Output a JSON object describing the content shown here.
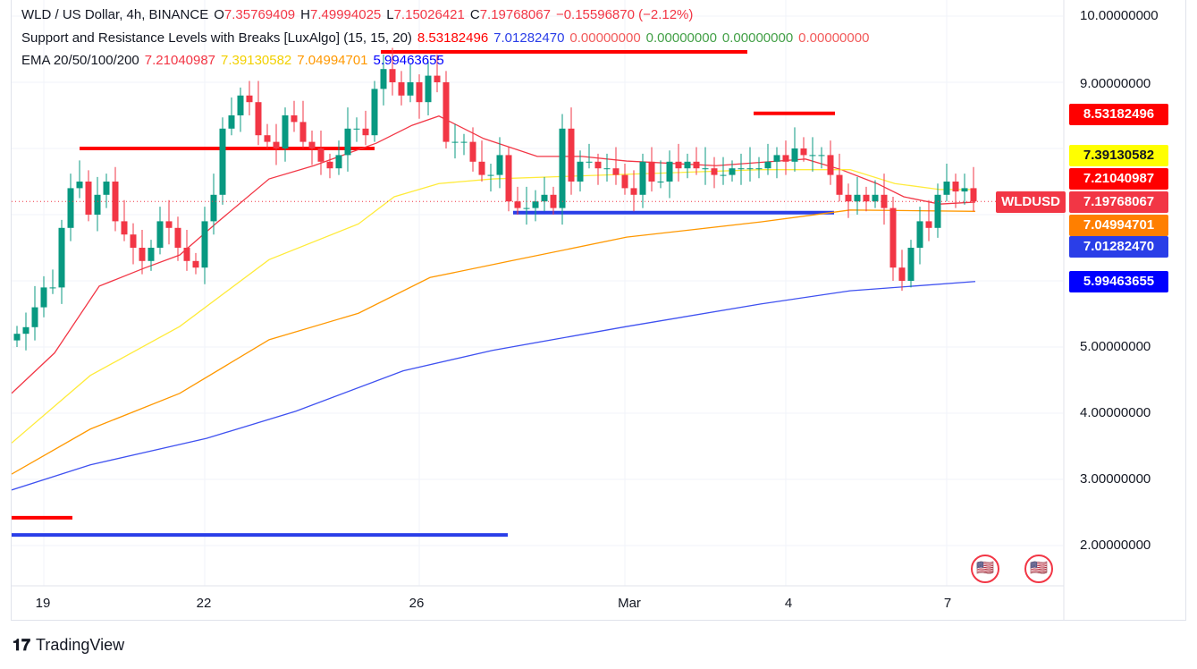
{
  "header": {
    "symbol": "WLD / US Dollar, 4h, BINANCE",
    "o_label": "O",
    "o": "7.35769409",
    "h_label": "H",
    "h": "7.49994025",
    "l_label": "L",
    "l": "7.15026421",
    "c_label": "C",
    "c": "7.19768067",
    "change": "−0.15596870 (−2.12%)"
  },
  "indicator1": {
    "name": "Support and Resistance Levels with Breaks [LuxAlgo] (15, 15, 20)",
    "v1": "8.53182496",
    "v2": "7.01282470",
    "v3": "0.00000000",
    "v4": "0.00000000",
    "v5": "0.00000000",
    "v6": "0.00000000"
  },
  "indicator2": {
    "name": "EMA 20/50/100/200",
    "v1": "7.21040987",
    "v2": "7.39130582",
    "v3": "7.04994701",
    "v4": "5.99463655"
  },
  "price_tags": {
    "resistance": "8.53182496",
    "ema50": "7.39130582",
    "ema20": "7.21040987",
    "last": "7.19768067",
    "ema100": "7.04994701",
    "support": "7.01282470",
    "ema200": "5.99463655",
    "symbol": "WLDUSD"
  },
  "brand": "TradingView",
  "colors": {
    "up": "#089981",
    "down": "#f23645",
    "ema20": "#f23645",
    "ema50": "#ffeb3b",
    "ema100": "#ff9800",
    "ema200": "#3f51f0",
    "res": "#ff0000",
    "sup": "#2a3ee8"
  },
  "chart_data": {
    "type": "candlestick",
    "title": "WLD / US Dollar, 4h, BINANCE",
    "yticks": [
      "10.00000000",
      "9.00000000",
      "5.00000000",
      "4.00000000",
      "3.00000000",
      "2.00000000"
    ],
    "ytick_values": [
      10,
      9,
      5,
      4,
      3,
      2
    ],
    "xticks": [
      {
        "label": "19",
        "i": 3
      },
      {
        "label": "22",
        "i": 21
      },
      {
        "label": "26",
        "i": 45
      },
      {
        "label": "Mar",
        "i": 68
      },
      {
        "label": "4",
        "i": 86
      },
      {
        "label": "7",
        "i": 104
      }
    ],
    "first_open": 5.1,
    "closes": [
      5.2,
      5.3,
      5.6,
      5.9,
      5.9,
      6.8,
      7.4,
      7.5,
      7.0,
      7.3,
      7.5,
      6.9,
      6.7,
      6.5,
      6.3,
      6.5,
      6.9,
      6.8,
      6.5,
      6.3,
      6.2,
      6.9,
      7.3,
      8.3,
      8.5,
      8.8,
      8.7,
      8.2,
      8.1,
      8.0,
      8.5,
      8.4,
      8.1,
      8.0,
      7.8,
      7.7,
      7.9,
      8.3,
      8.3,
      8.2,
      8.9,
      9.2,
      9.0,
      8.8,
      9.0,
      8.7,
      9.1,
      9.0,
      8.1,
      8.1,
      8.1,
      7.8,
      7.6,
      7.6,
      7.9,
      7.2,
      7.1,
      7.1,
      7.2,
      7.3,
      7.1,
      8.3,
      7.5,
      7.8,
      7.8,
      7.7,
      7.7,
      7.6,
      7.4,
      7.3,
      7.8,
      7.5,
      7.5,
      7.8,
      7.7,
      7.8,
      7.7,
      7.7,
      7.6,
      7.6,
      7.7,
      7.7,
      7.7,
      7.7,
      7.8,
      7.9,
      7.8,
      8.0,
      7.9,
      7.9,
      7.9,
      7.6,
      7.3,
      7.2,
      7.3,
      7.2,
      7.3,
      7.1,
      6.2,
      6.0,
      6.5,
      6.9,
      6.8,
      7.3,
      7.5,
      7.35,
      7.4,
      7.2
    ],
    "ema": [
      {
        "name": "EMA20",
        "color": "#f23645",
        "points": [
          [
            -0.6,
            4.3
          ],
          [
            4.2,
            4.91
          ],
          [
            9.2,
            5.92
          ],
          [
            14.2,
            6.19
          ],
          [
            18.2,
            6.39
          ],
          [
            22.2,
            6.86
          ],
          [
            28.2,
            7.54
          ],
          [
            33.2,
            7.74
          ],
          [
            40.2,
            8.08
          ],
          [
            44.2,
            8.35
          ],
          [
            47.2,
            8.49
          ],
          [
            52.2,
            8.15
          ],
          [
            58.2,
            7.88
          ],
          [
            63.2,
            7.88
          ],
          [
            68.2,
            7.81
          ],
          [
            78.2,
            7.74
          ],
          [
            88.2,
            7.84
          ],
          [
            92.2,
            7.68
          ],
          [
            96.2,
            7.47
          ],
          [
            99.2,
            7.27
          ],
          [
            103.2,
            7.16
          ],
          [
            107.2,
            7.19
          ]
        ]
      },
      {
        "name": "EMA50",
        "color": "#ffeb3b",
        "points": [
          [
            -0.6,
            3.55
          ],
          [
            8.2,
            4.57
          ],
          [
            18.2,
            5.31
          ],
          [
            28.2,
            6.32
          ],
          [
            38.2,
            6.86
          ],
          [
            42.2,
            7.27
          ],
          [
            47.2,
            7.47
          ],
          [
            53.2,
            7.54
          ],
          [
            68.2,
            7.61
          ],
          [
            83.2,
            7.68
          ],
          [
            93.2,
            7.68
          ],
          [
            98.2,
            7.47
          ],
          [
            103.2,
            7.38
          ],
          [
            107.2,
            7.38
          ]
        ]
      },
      {
        "name": "EMA100",
        "color": "#ff9800",
        "points": [
          [
            -0.6,
            3.08
          ],
          [
            8.2,
            3.76
          ],
          [
            18.2,
            4.3
          ],
          [
            28.2,
            5.11
          ],
          [
            38.2,
            5.51
          ],
          [
            46.2,
            6.05
          ],
          [
            55.2,
            6.3
          ],
          [
            68.2,
            6.66
          ],
          [
            83.2,
            6.89
          ],
          [
            93.2,
            7.07
          ],
          [
            107.2,
            7.05
          ]
        ]
      },
      {
        "name": "EMA200",
        "color": "#3f51f0",
        "points": [
          [
            -0.6,
            2.84
          ],
          [
            8.2,
            3.22
          ],
          [
            21.2,
            3.62
          ],
          [
            31.2,
            4.03
          ],
          [
            43.2,
            4.64
          ],
          [
            53.2,
            4.95
          ],
          [
            68.2,
            5.31
          ],
          [
            83.2,
            5.65
          ],
          [
            93.2,
            5.85
          ],
          [
            107.2,
            5.99
          ]
        ]
      }
    ],
    "levels": [
      {
        "type": "resistance",
        "value": 8.0,
        "from": 7,
        "to": 40
      },
      {
        "type": "resistance",
        "value": 9.46,
        "from": 40.7,
        "to": 81.7
      },
      {
        "type": "resistance",
        "value": 8.53,
        "from": 82.4,
        "to": 91.5
      },
      {
        "type": "resistance",
        "value": 2.42,
        "from": -0.6,
        "to": 6.2
      },
      {
        "type": "support",
        "value": 7.03,
        "from": 55.5,
        "to": 91.4
      },
      {
        "type": "support",
        "value": 2.16,
        "from": -0.6,
        "to": 54.9
      }
    ],
    "ylim": [
      1.6,
      10.2
    ]
  }
}
